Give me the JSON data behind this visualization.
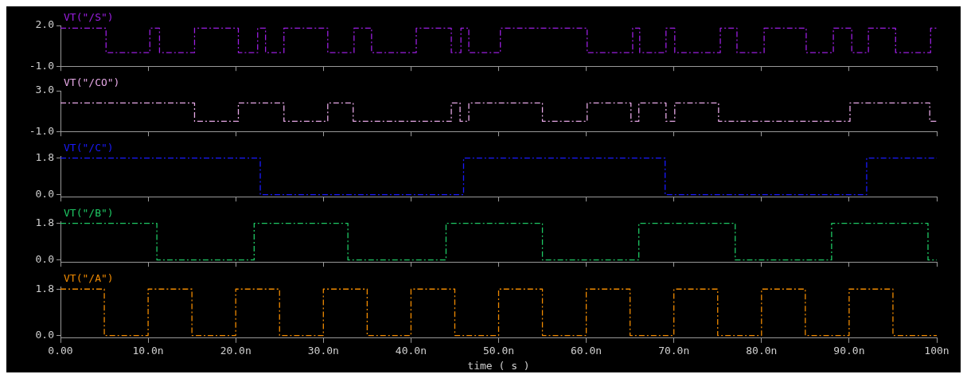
{
  "chart_data": [
    {
      "type": "step",
      "xlim": [
        0,
        100
      ],
      "ylim": [
        -1,
        2
      ],
      "yticks": [
        {
          "value": 2,
          "label": "2.0"
        },
        {
          "value": -1,
          "label": "-1.0"
        }
      ],
      "xticks": [
        0,
        10,
        20,
        30,
        40,
        50,
        60,
        70,
        80,
        90,
        100
      ],
      "tick_labels": "y",
      "grid": false,
      "legend": "top left",
      "line_style": "dashed",
      "series": [
        {
          "name": "VT(\"/S\")",
          "color": "#9a1ee0",
          "x": [
            0,
            5.2,
            10.2,
            11.3,
            15.3,
            20.3,
            22.5,
            23.4,
            25.5,
            30.5,
            33.5,
            35.5,
            40.6,
            44.6,
            45.7,
            46.6,
            50.2,
            60.1,
            65.3,
            66.1,
            69.1,
            70.1,
            75.3,
            77.2,
            80.3,
            85.1,
            88.2,
            90.3,
            92.2,
            95.3,
            99.3,
            100
          ],
          "values": [
            1.8,
            0,
            1.8,
            0,
            1.8,
            0,
            1.8,
            0,
            1.8,
            0,
            1.8,
            0,
            1.8,
            0,
            1.8,
            0,
            1.8,
            0,
            1.8,
            0,
            1.8,
            0,
            1.8,
            0,
            1.8,
            0,
            1.8,
            0,
            1.8,
            0,
            1.8,
            1.8
          ]
        }
      ]
    },
    {
      "type": "step",
      "xlim": [
        0,
        100
      ],
      "ylim": [
        -1,
        3
      ],
      "yticks": [
        {
          "value": 3,
          "label": "3.0"
        },
        {
          "value": -1,
          "label": "-1.0"
        }
      ],
      "xticks": [
        0,
        10,
        20,
        30,
        40,
        50,
        60,
        70,
        80,
        90,
        100
      ],
      "tick_labels": "y",
      "grid": false,
      "legend": "top left",
      "line_style": "dashed",
      "series": [
        {
          "name": "VT(\"/CO\")",
          "color": "#e6a8e6",
          "x": [
            0,
            15.3,
            20.3,
            25.5,
            30.5,
            33.4,
            44.6,
            45.6,
            46.6,
            55,
            60.1,
            65.1,
            66,
            69.1,
            70.1,
            75.1,
            90.1,
            99.2,
            100
          ],
          "values": [
            1.8,
            0,
            1.8,
            0,
            1.8,
            0,
            1.8,
            0,
            1.8,
            0,
            1.8,
            0,
            1.8,
            0,
            1.8,
            0,
            1.8,
            0,
            0
          ]
        }
      ]
    },
    {
      "type": "step",
      "xlim": [
        0,
        100
      ],
      "ylim": [
        -0.1,
        1.9
      ],
      "yticks": [
        {
          "value": 1.8,
          "label": "1.8"
        },
        {
          "value": 0,
          "label": "0.0"
        }
      ],
      "xticks": [
        0,
        10,
        20,
        30,
        40,
        50,
        60,
        70,
        80,
        90,
        100
      ],
      "tick_labels": "y",
      "grid": false,
      "legend": "top left",
      "line_style": "dashed",
      "series": [
        {
          "name": "VT(\"/C\")",
          "color": "#1a1aff",
          "x": [
            0,
            22.8,
            46,
            69,
            92,
            100
          ],
          "values": [
            1.8,
            0,
            1.8,
            0,
            1.8,
            1.8
          ]
        }
      ]
    },
    {
      "type": "step",
      "xlim": [
        0,
        100
      ],
      "ylim": [
        -0.1,
        1.9
      ],
      "yticks": [
        {
          "value": 1.8,
          "label": "1.8"
        },
        {
          "value": 0,
          "label": "0.0"
        }
      ],
      "xticks": [
        0,
        10,
        20,
        30,
        40,
        50,
        60,
        70,
        80,
        90,
        100
      ],
      "tick_labels": "y",
      "grid": false,
      "legend": "top left",
      "line_style": "dashed",
      "series": [
        {
          "name": "VT(\"/B\")",
          "color": "#1ec864",
          "x": [
            0,
            11,
            22.1,
            32.8,
            44,
            55,
            66,
            77,
            88,
            99,
            100
          ],
          "values": [
            1.8,
            0,
            1.8,
            0,
            1.8,
            0,
            1.8,
            0,
            1.8,
            0,
            0
          ]
        }
      ]
    },
    {
      "type": "step",
      "xlim": [
        0,
        100
      ],
      "ylim": [
        -0.1,
        1.9
      ],
      "yticks": [
        {
          "value": 1.8,
          "label": "1.8"
        },
        {
          "value": 0,
          "label": "0.0"
        }
      ],
      "xticks": [
        {
          "value": 0,
          "label": "0.00"
        },
        {
          "value": 10,
          "label": "10.0n"
        },
        {
          "value": 20,
          "label": "20.0n"
        },
        {
          "value": 30,
          "label": "30.0n"
        },
        {
          "value": 40,
          "label": "40.0n"
        },
        {
          "value": 50,
          "label": "50.0n"
        },
        {
          "value": 60,
          "label": "60.0n"
        },
        {
          "value": 70,
          "label": "70.0n"
        },
        {
          "value": 80,
          "label": "80.0n"
        },
        {
          "value": 90,
          "label": "90.0n"
        },
        {
          "value": 100,
          "label": "100n"
        }
      ],
      "xlabel": "time ( s )",
      "grid": false,
      "legend": "top left",
      "line_style": "dashed",
      "series": [
        {
          "name": "VT(\"/A\")",
          "color": "#f08a00",
          "x": [
            0,
            5,
            10,
            15,
            20,
            25,
            30,
            35,
            40,
            45,
            50,
            55,
            60,
            65,
            70,
            75,
            80,
            85,
            90,
            95,
            100
          ],
          "values": [
            1.8,
            0,
            1.8,
            0,
            1.8,
            0,
            1.8,
            0,
            1.8,
            0,
            1.8,
            0,
            1.8,
            0,
            1.8,
            0,
            1.8,
            0,
            1.8,
            0,
            0
          ]
        }
      ]
    }
  ]
}
